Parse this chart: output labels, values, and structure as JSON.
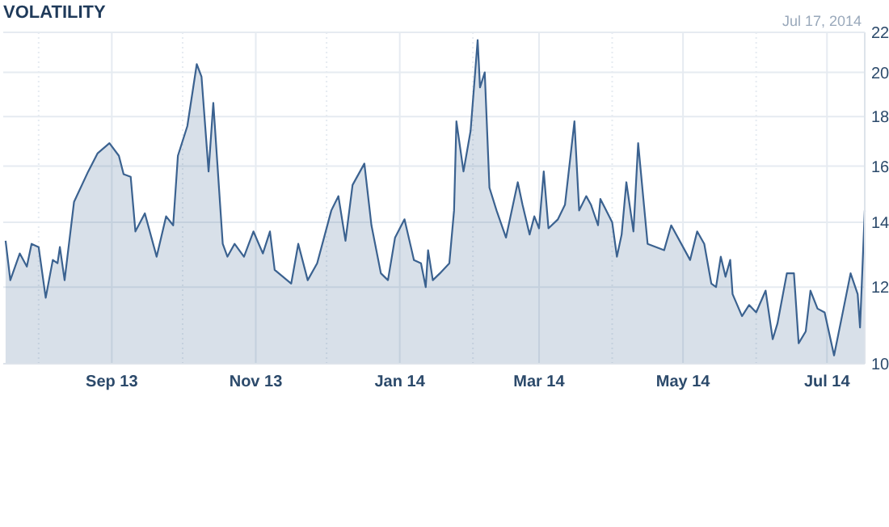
{
  "chart_data": {
    "type": "area",
    "title": "VOLATILITY",
    "annotations": [
      "Jul 17, 2014"
    ],
    "x": [
      "2013-07-18",
      "2013-07-20",
      "2013-07-24",
      "2013-07-27",
      "2013-07-29",
      "2013-08-01",
      "2013-08-04",
      "2013-08-07",
      "2013-08-09",
      "2013-08-10",
      "2013-08-12",
      "2013-08-16",
      "2013-08-22",
      "2013-08-26",
      "2013-08-31",
      "2013-09-04",
      "2013-09-06",
      "2013-09-09",
      "2013-09-11",
      "2013-09-15",
      "2013-09-20",
      "2013-09-24",
      "2013-09-27",
      "2013-09-29",
      "2013-10-03",
      "2013-10-07",
      "2013-10-09",
      "2013-10-12",
      "2013-10-14",
      "2013-10-18",
      "2013-10-20",
      "2013-10-23",
      "2013-10-27",
      "2013-10-31",
      "2013-11-04",
      "2013-11-07",
      "2013-11-09",
      "2013-11-16",
      "2013-11-19",
      "2013-11-23",
      "2013-11-27",
      "2013-12-03",
      "2013-12-06",
      "2013-12-09",
      "2013-12-12",
      "2013-12-17",
      "2013-12-20",
      "2013-12-24",
      "2013-12-27",
      "2013-12-30",
      "2014-01-03",
      "2014-01-07",
      "2014-01-10",
      "2014-01-12",
      "2014-01-13",
      "2014-01-15",
      "2014-01-18",
      "2014-01-22",
      "2014-01-24",
      "2014-01-25",
      "2014-01-28",
      "2014-01-31",
      "2014-02-03",
      "2014-02-04",
      "2014-02-06",
      "2014-02-08",
      "2014-02-11",
      "2014-02-15",
      "2014-02-20",
      "2014-02-22",
      "2014-02-25",
      "2014-02-27",
      "2014-03-01",
      "2014-03-03",
      "2014-03-05",
      "2014-03-09",
      "2014-03-12",
      "2014-03-16",
      "2014-03-18",
      "2014-03-21",
      "2014-03-23",
      "2014-03-26",
      "2014-03-27",
      "2014-04-01",
      "2014-04-03",
      "2014-04-05",
      "2014-04-07",
      "2014-04-10",
      "2014-04-12",
      "2014-04-16",
      "2014-04-23",
      "2014-04-26",
      "2014-05-04",
      "2014-05-07",
      "2014-05-10",
      "2014-05-13",
      "2014-05-15",
      "2014-05-17",
      "2014-05-19",
      "2014-05-21",
      "2014-05-22",
      "2014-05-26",
      "2014-05-29",
      "2014-06-01",
      "2014-06-05",
      "2014-06-08",
      "2014-06-10",
      "2014-06-14",
      "2014-06-17",
      "2014-06-19",
      "2014-06-22",
      "2014-06-24",
      "2014-06-27",
      "2014-06-30",
      "2014-07-04",
      "2014-07-08",
      "2014-07-11",
      "2014-07-14",
      "2014-07-15",
      "2014-07-17"
    ],
    "series": [
      {
        "color": "#3b6290",
        "values": [
          13.4,
          12.2,
          13.0,
          12.6,
          13.3,
          13.2,
          11.7,
          12.8,
          12.7,
          13.2,
          12.2,
          14.7,
          15.8,
          16.5,
          16.9,
          16.4,
          15.7,
          15.6,
          13.7,
          14.3,
          12.9,
          14.2,
          13.9,
          16.4,
          17.6,
          20.4,
          19.8,
          15.8,
          18.6,
          13.3,
          12.9,
          13.3,
          12.9,
          13.7,
          13.0,
          13.7,
          12.5,
          12.1,
          13.3,
          12.2,
          12.7,
          14.4,
          14.9,
          13.4,
          15.3,
          16.1,
          13.9,
          12.4,
          12.2,
          13.5,
          14.1,
          12.8,
          12.7,
          12.0,
          13.1,
          12.2,
          12.4,
          12.7,
          14.4,
          17.8,
          15.8,
          17.4,
          21.6,
          19.3,
          20.0,
          15.2,
          14.4,
          13.5,
          15.4,
          14.6,
          13.6,
          14.2,
          13.8,
          15.8,
          13.8,
          14.1,
          14.6,
          17.8,
          14.4,
          14.9,
          14.6,
          13.9,
          14.8,
          14.0,
          12.9,
          13.6,
          15.4,
          13.7,
          16.9,
          13.3,
          13.1,
          13.9,
          12.8,
          13.7,
          13.3,
          12.1,
          12.0,
          12.9,
          12.3,
          12.8,
          11.8,
          11.2,
          11.5,
          11.3,
          11.9,
          10.6,
          11.0,
          12.4,
          12.4,
          10.5,
          10.8,
          11.9,
          11.4,
          11.3,
          10.2,
          11.4,
          12.4,
          11.8,
          10.9,
          14.4
        ]
      }
    ],
    "xlim": [
      "2013-07-17",
      "2014-07-17"
    ],
    "xticks": [
      {
        "value": "2013-08-01",
        "label": null
      },
      {
        "value": "2013-09-01",
        "label": "Sep 13"
      },
      {
        "value": "2013-10-01",
        "label": null
      },
      {
        "value": "2013-11-01",
        "label": "Nov 13"
      },
      {
        "value": "2013-12-01",
        "label": null
      },
      {
        "value": "2014-01-01",
        "label": "Jan 14"
      },
      {
        "value": "2014-02-01",
        "label": null
      },
      {
        "value": "2014-03-01",
        "label": "Mar 14"
      },
      {
        "value": "2014-04-01",
        "label": null
      },
      {
        "value": "2014-05-01",
        "label": "May 14"
      },
      {
        "value": "2014-06-01",
        "label": null
      },
      {
        "value": "2014-07-01",
        "label": "Jul 14"
      }
    ],
    "ylim": [
      10,
      22
    ],
    "yticks": [
      10,
      12,
      14,
      16,
      18,
      20,
      22
    ],
    "log": true,
    "grid": true
  }
}
